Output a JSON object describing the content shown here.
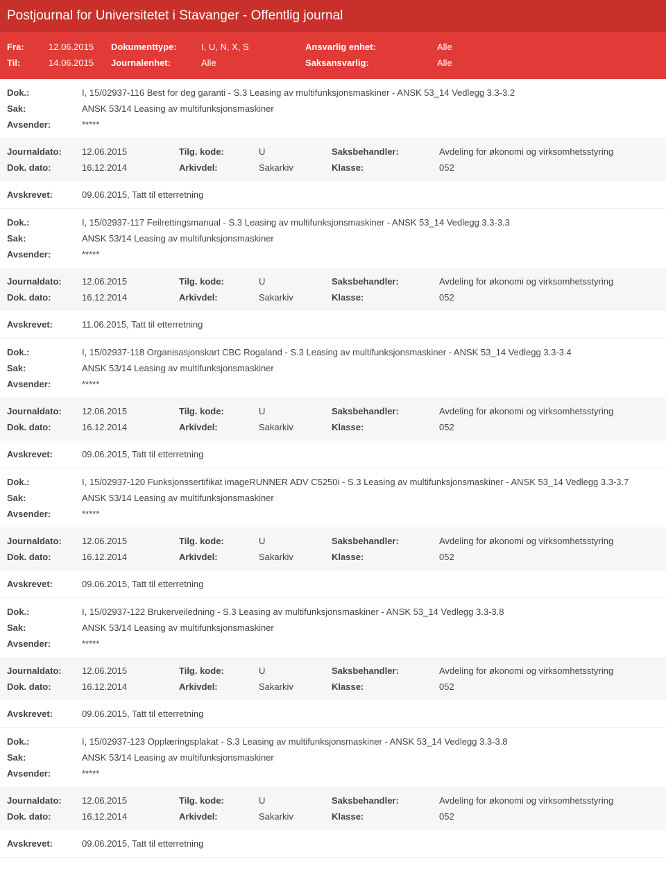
{
  "header": {
    "title": "Postjournal for Universitetet i Stavanger - Offentlig journal",
    "fra_label": "Fra:",
    "fra": "12.06.2015",
    "til_label": "Til:",
    "til": "14.06.2015",
    "doktype_label": "Dokumenttype:",
    "doktype": "I, U, N, X, S",
    "journal_label": "Journalenhet:",
    "journal": "Alle",
    "ansvarlig_label": "Ansvarlig enhet:",
    "ansvarlig": "Alle",
    "saks_label": "Saksansvarlig:",
    "saks": "Alle"
  },
  "labels": {
    "dok": "Dok.:",
    "sak": "Sak:",
    "avsender": "Avsender:",
    "journaldato": "Journaldato:",
    "tilgkode": "Tilg. kode:",
    "saksbeh": "Saksbehandler:",
    "dokdato": "Dok. dato:",
    "arkivdel": "Arkivdel:",
    "klasse": "Klasse:",
    "avskrevet": "Avskrevet:"
  },
  "common": {
    "sak": "ANSK 53/14 Leasing av multifunksjonsmaskiner",
    "avsender": "*****",
    "journaldato": "12.06.2015",
    "tilgkode": "U",
    "saksbeh": "Avdeling for økonomi og virksomhetsstyring",
    "dokdato": "16.12.2014",
    "arkivdel": "Sakarkiv",
    "klasse": "052"
  },
  "entries": [
    {
      "dok": "I, 15/02937-116 Best for deg garanti - S.3 Leasing av multifunksjonsmaskiner - ANSK 53_14 Vedlegg 3.3-3.2",
      "avskrevet": "09.06.2015, Tatt til etterretning"
    },
    {
      "dok": "I, 15/02937-117 Feilrettingsmanual - S.3 Leasing av multifunksjonsmaskiner - ANSK 53_14 Vedlegg 3.3-3.3",
      "avskrevet": "11.06.2015, Tatt til etterretning"
    },
    {
      "dok": "I, 15/02937-118 Organisasjonskart CBC Rogaland - S.3 Leasing av multifunksjonsmaskiner - ANSK 53_14 Vedlegg 3.3-3.4",
      "avskrevet": "09.06.2015, Tatt til etterretning"
    },
    {
      "dok": "I, 15/02937-120 Funksjonssertifikat imageRUNNER ADV C5250i - S.3 Leasing av multifunksjonsmaskiner - ANSK 53_14 Vedlegg 3.3-3.7",
      "avskrevet": "09.06.2015, Tatt til etterretning"
    },
    {
      "dok": "I, 15/02937-122 Brukerveiledning - S.3 Leasing av multifunksjonsmaskiner - ANSK 53_14 Vedlegg 3.3-3.8",
      "avskrevet": "09.06.2015, Tatt til etterretning"
    },
    {
      "dok": "I, 15/02937-123 Opplæringsplakat - S.3 Leasing av multifunksjonsmaskiner - ANSK 53_14 Vedlegg 3.3-3.8",
      "avskrevet": "09.06.2015, Tatt til etterretning"
    }
  ]
}
